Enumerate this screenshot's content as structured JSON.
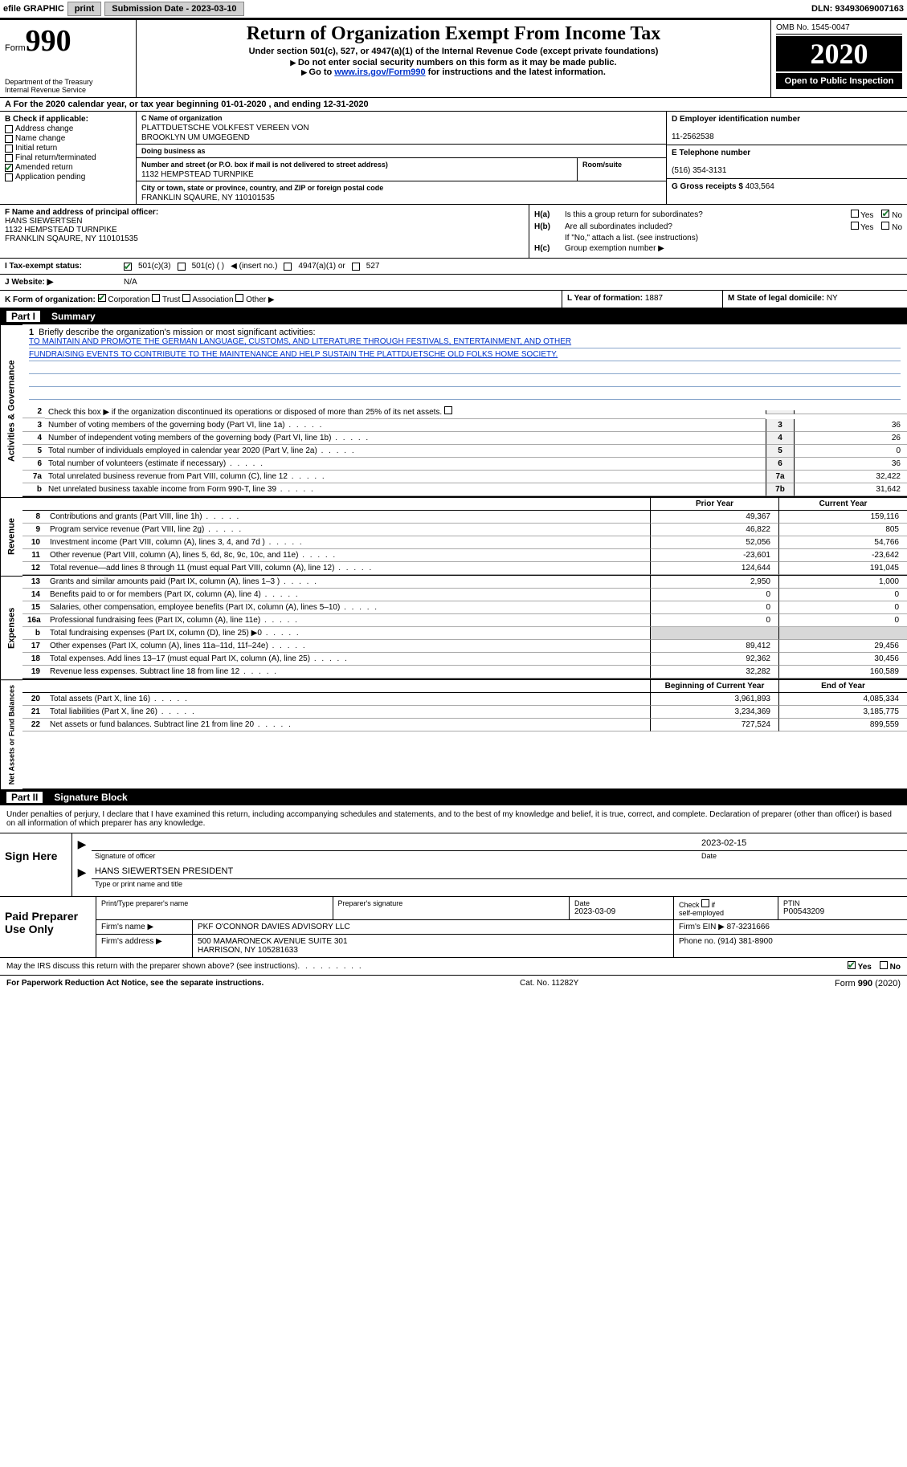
{
  "topbar": {
    "efile": "efile GRAPHIC",
    "print": "print",
    "subdate_label": "Submission Date - ",
    "subdate": "2023-03-10",
    "dln_label": "DLN: ",
    "dln": "93493069007163"
  },
  "header": {
    "form_prefix": "Form",
    "form_num": "990",
    "dept1": "Department of the Treasury",
    "dept2": "Internal Revenue Service",
    "title": "Return of Organization Exempt From Income Tax",
    "sub": "Under section 501(c), 527, or 4947(a)(1) of the Internal Revenue Code (except private foundations)",
    "inst1": "Do not enter social security numbers on this form as it may be made public.",
    "inst2_a": "Go to ",
    "inst2_link": "www.irs.gov/Form990",
    "inst2_b": " for instructions and the latest information.",
    "omb": "OMB No. 1545-0047",
    "year": "2020",
    "open": "Open to Public Inspection"
  },
  "taxyear_line": "A For the 2020 calendar year, or tax year beginning 01-01-2020   , and ending 12-31-2020",
  "checkB": {
    "title": "B Check if applicable:",
    "items": [
      {
        "label": "Address change",
        "checked": false
      },
      {
        "label": "Name change",
        "checked": false
      },
      {
        "label": "Initial return",
        "checked": false
      },
      {
        "label": "Final return/terminated",
        "checked": false
      },
      {
        "label": "Amended return",
        "checked": true
      },
      {
        "label": "Application pending",
        "checked": false
      }
    ]
  },
  "entity": {
    "c_label": "C Name of organization",
    "name1": "PLATTDUETSCHE VOLKFEST VEREEN VON",
    "name2": "BROOKLYN UM UMGEGEND",
    "dba_label": "Doing business as",
    "addr_label": "Number and street (or P.O. box if mail is not delivered to street address)",
    "room_label": "Room/suite",
    "addr": "1132 HEMPSTEAD TURNPIKE",
    "city_label": "City or town, state or province, country, and ZIP or foreign postal code",
    "city": "FRANKLIN SQAURE, NY  110101535"
  },
  "right": {
    "d_label": "D Employer identification number",
    "ein": "11-2562538",
    "e_label": "E Telephone number",
    "phone": "(516) 354-3131",
    "g_label": "G Gross receipts $ ",
    "gross": "403,564"
  },
  "officer": {
    "f_label": "F Name and address of principal officer:",
    "name": "HANS SIEWERTSEN",
    "addr1": "1132 HEMPSTEAD TURNPIKE",
    "addr2": "FRANKLIN SQAURE, NY  110101535"
  },
  "h": {
    "ha_label": "Is this a group return for subordinates?",
    "ha_yes": false,
    "ha_no": true,
    "hb_label": "Are all subordinates included?",
    "hb_yes": false,
    "hb_no": false,
    "hb_note": "If \"No,\" attach a list. (see instructions)",
    "hc_label": "Group exemption number ▶"
  },
  "status": {
    "i_label": "I   Tax-exempt status:",
    "opts": {
      "501c3": true,
      "501c": false,
      "501c_insert": "◀ (insert no.)",
      "4947": false,
      "4947_label": "4947(a)(1) or",
      "527": false
    }
  },
  "website": {
    "j_label": "J   Website: ▶",
    "val": "N/A"
  },
  "korg": {
    "k_label": "K Form of organization:",
    "corp": true,
    "trust": false,
    "assoc": false,
    "other": false,
    "other_arrow": "▶"
  },
  "lym": {
    "l_label": "L Year of formation: ",
    "l_val": "1887",
    "m_label": "M State of legal domicile: ",
    "m_val": "NY"
  },
  "part1": {
    "num": "Part I",
    "title": "Summary"
  },
  "mission": {
    "line1_label": "Briefly describe the organization's mission or most significant activities:",
    "text1": "TO MAINTAIN AND PROMOTE THE GERMAN LANGUAGE, CUSTOMS, AND LITERATURE THROUGH FESTIVALS, ENTERTAINMENT, AND OTHER",
    "text2": "FUNDRAISING EVENTS TO CONTRIBUTE TO THE MAINTENANCE AND HELP SUSTAIN THE PLATTDUETSCHE OLD FOLKS HOME SOCIETY."
  },
  "gov_rows": [
    {
      "n": "2",
      "desc": "Check this box ▶        if the organization discontinued its operations or disposed of more than 25% of its net assets.",
      "box": "",
      "val": ""
    },
    {
      "n": "3",
      "desc": "Number of voting members of the governing body (Part VI, line 1a)",
      "box": "3",
      "val": "36"
    },
    {
      "n": "4",
      "desc": "Number of independent voting members of the governing body (Part VI, line 1b)",
      "box": "4",
      "val": "26"
    },
    {
      "n": "5",
      "desc": "Total number of individuals employed in calendar year 2020 (Part V, line 2a)",
      "box": "5",
      "val": "0"
    },
    {
      "n": "6",
      "desc": "Total number of volunteers (estimate if necessary)",
      "box": "6",
      "val": "36"
    },
    {
      "n": "7a",
      "desc": "Total unrelated business revenue from Part VIII, column (C), line 12",
      "box": "7a",
      "val": "32,422"
    },
    {
      "n": "b",
      "desc": "Net unrelated business taxable income from Form 990-T, line 39",
      "box": "7b",
      "val": "31,642"
    }
  ],
  "twocol": {
    "prior": "Prior Year",
    "current": "Current Year"
  },
  "revenue_rows": [
    {
      "n": "8",
      "desc": "Contributions and grants (Part VIII, line 1h)",
      "v1": "49,367",
      "v2": "159,116"
    },
    {
      "n": "9",
      "desc": "Program service revenue (Part VIII, line 2g)",
      "v1": "46,822",
      "v2": "805"
    },
    {
      "n": "10",
      "desc": "Investment income (Part VIII, column (A), lines 3, 4, and 7d )",
      "v1": "52,056",
      "v2": "54,766"
    },
    {
      "n": "11",
      "desc": "Other revenue (Part VIII, column (A), lines 5, 6d, 8c, 9c, 10c, and 11e)",
      "v1": "-23,601",
      "v2": "-23,642"
    },
    {
      "n": "12",
      "desc": "Total revenue—add lines 8 through 11 (must equal Part VIII, column (A), line 12)",
      "v1": "124,644",
      "v2": "191,045"
    }
  ],
  "expense_rows": [
    {
      "n": "13",
      "desc": "Grants and similar amounts paid (Part IX, column (A), lines 1–3 )",
      "v1": "2,950",
      "v2": "1,000"
    },
    {
      "n": "14",
      "desc": "Benefits paid to or for members (Part IX, column (A), line 4)",
      "v1": "0",
      "v2": "0"
    },
    {
      "n": "15",
      "desc": "Salaries, other compensation, employee benefits (Part IX, column (A), lines 5–10)",
      "v1": "0",
      "v2": "0"
    },
    {
      "n": "16a",
      "desc": "Professional fundraising fees (Part IX, column (A), line 11e)",
      "v1": "0",
      "v2": "0"
    },
    {
      "n": "b",
      "desc": "Total fundraising expenses (Part IX, column (D), line 25) ▶0",
      "shade": true
    },
    {
      "n": "17",
      "desc": "Other expenses (Part IX, column (A), lines 11a–11d, 11f–24e)",
      "v1": "89,412",
      "v2": "29,456"
    },
    {
      "n": "18",
      "desc": "Total expenses. Add lines 13–17 (must equal Part IX, column (A), line 25)",
      "v1": "92,362",
      "v2": "30,456"
    },
    {
      "n": "19",
      "desc": "Revenue less expenses. Subtract line 18 from line 12",
      "v1": "32,282",
      "v2": "160,589"
    }
  ],
  "net_head": {
    "h1": "Beginning of Current Year",
    "h2": "End of Year"
  },
  "net_rows": [
    {
      "n": "20",
      "desc": "Total assets (Part X, line 16)",
      "v1": "3,961,893",
      "v2": "4,085,334"
    },
    {
      "n": "21",
      "desc": "Total liabilities (Part X, line 26)",
      "v1": "3,234,369",
      "v2": "3,185,775"
    },
    {
      "n": "22",
      "desc": "Net assets or fund balances. Subtract line 21 from line 20",
      "v1": "727,524",
      "v2": "899,559"
    }
  ],
  "part2": {
    "num": "Part II",
    "title": "Signature Block"
  },
  "sig_intro": "Under penalties of perjury, I declare that I have examined this return, including accompanying schedules and statements, and to the best of my knowledge and belief, it is true, correct, and complete. Declaration of preparer (other than officer) is based on all information of which preparer has any knowledge.",
  "sign": {
    "label": "Sign Here",
    "sig_cap": "Signature of officer",
    "date_cap": "Date",
    "date": "2023-02-15",
    "name": "HANS SIEWERTSEN PRESIDENT",
    "name_cap": "Type or print name and title"
  },
  "paid": {
    "label": "Paid Preparer Use Only",
    "r1": {
      "c1_cap": "Print/Type preparer's name",
      "c1": "",
      "c2_cap": "Preparer's signature",
      "c2": "",
      "c3_cap": "Date",
      "c3": "2023-03-09",
      "c4_cap": "Check         if self-employed",
      "c5_cap": "PTIN",
      "c5": "P00543209"
    },
    "r2": {
      "lab": "Firm's name      ▶",
      "val": "PKF O'CONNOR DAVIES ADVISORY LLC",
      "ein_lab": "Firm's EIN ▶ ",
      "ein": "87-3231666"
    },
    "r3": {
      "lab": "Firm's address ▶",
      "val1": "500 MAMARONECK AVENUE SUITE 301",
      "val2": "HARRISON, NY 105281633",
      "ph_lab": "Phone no. ",
      "ph": "(914) 381-8900"
    }
  },
  "discuss": {
    "text": "May the IRS discuss this return with the preparer shown above? (see instructions)",
    "yes": true,
    "no": false
  },
  "footer": {
    "left": "For Paperwork Reduction Act Notice, see the separate instructions.",
    "mid": "Cat. No. 11282Y",
    "right_a": "Form ",
    "right_b": "990",
    "right_c": " (2020)"
  }
}
